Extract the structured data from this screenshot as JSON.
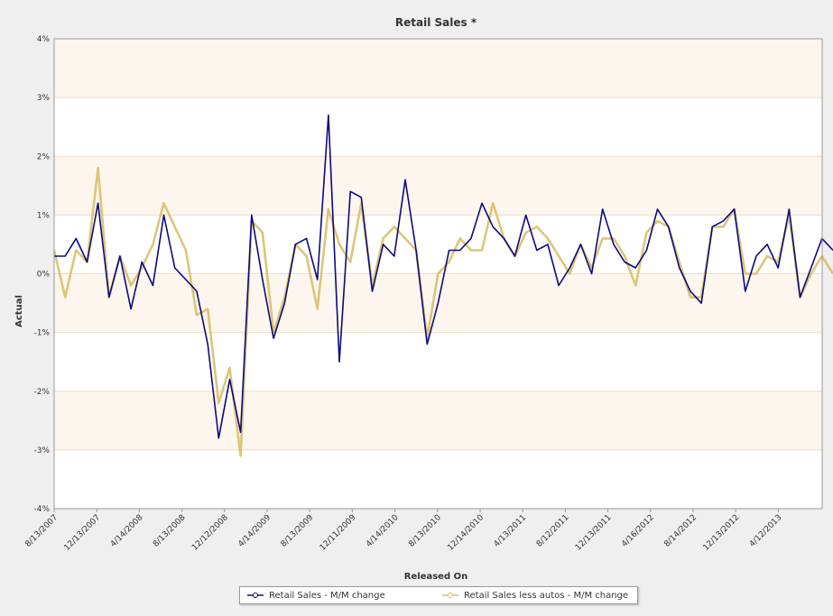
{
  "chart_data": {
    "type": "line",
    "title": "Retail Sales *",
    "xlabel": "Released On",
    "ylabel": "Actual",
    "ylim": [
      -4,
      4
    ],
    "y_ticks": [
      "-4%",
      "-3%",
      "-2%",
      "-1%",
      "0%",
      "1%",
      "2%",
      "3%",
      "4%"
    ],
    "y_tick_values": [
      -4,
      -3,
      -2,
      -1,
      0,
      1,
      2,
      3,
      4
    ],
    "x_tick_labels": [
      "8/13/2007",
      "12/13/2007",
      "4/14/2008",
      "8/13/2008",
      "12/12/2008",
      "4/14/2009",
      "8/13/2009",
      "12/11/2009",
      "4/14/2010",
      "8/13/2010",
      "12/14/2010",
      "4/13/2011",
      "8/12/2011",
      "12/13/2011",
      "4/16/2012",
      "8/14/2012",
      "12/13/2012",
      "4/12/2013"
    ],
    "grid": true,
    "legend_position": "bottom",
    "series": [
      {
        "name": "Retail Sales - M/M change",
        "color": "#0a0a80",
        "values": [
          0.3,
          0.3,
          0.6,
          0.2,
          1.2,
          -0.4,
          0.3,
          -0.6,
          0.2,
          -0.2,
          1.0,
          0.1,
          -0.1,
          -0.3,
          -1.2,
          -2.8,
          -1.8,
          -2.7,
          1.0,
          -0.1,
          -1.1,
          -0.5,
          0.5,
          0.6,
          -0.1,
          2.7,
          -1.5,
          1.4,
          1.3,
          -0.3,
          0.5,
          0.3,
          1.6,
          0.4,
          -1.2,
          -0.5,
          0.4,
          0.4,
          0.6,
          1.2,
          0.8,
          0.6,
          0.3,
          1.0,
          0.4,
          0.5,
          -0.2,
          0.1,
          0.5,
          0.0,
          1.1,
          0.5,
          0.2,
          0.1,
          0.4,
          1.1,
          0.8,
          0.1,
          -0.3,
          -0.5,
          0.8,
          0.9,
          1.1,
          -0.3,
          0.3,
          0.5,
          0.1,
          1.1,
          -0.4,
          0.1,
          0.6,
          0.4
        ]
      },
      {
        "name": "Retail Sales less autos - M/M change",
        "color": "#d9bf6a",
        "values": [
          0.4,
          -0.4,
          0.4,
          0.2,
          1.8,
          -0.4,
          0.3,
          -0.2,
          0.1,
          0.5,
          1.2,
          0.8,
          0.4,
          -0.7,
          -0.6,
          -2.2,
          -1.6,
          -3.1,
          0.9,
          0.7,
          -1.0,
          -0.4,
          0.5,
          0.3,
          -0.6,
          1.1,
          0.5,
          0.2,
          1.2,
          -0.2,
          0.6,
          0.8,
          0.6,
          0.4,
          -1.1,
          0.0,
          0.2,
          0.6,
          0.4,
          0.4,
          1.2,
          0.6,
          0.3,
          0.7,
          0.8,
          0.6,
          0.3,
          0.0,
          0.5,
          0.1,
          0.6,
          0.6,
          0.3,
          -0.2,
          0.7,
          0.9,
          0.8,
          0.2,
          -0.4,
          -0.4,
          0.8,
          0.8,
          1.1,
          0.0,
          0.0,
          0.3,
          0.2,
          1.0,
          -0.4,
          0.0,
          0.3,
          0.0
        ]
      }
    ]
  }
}
